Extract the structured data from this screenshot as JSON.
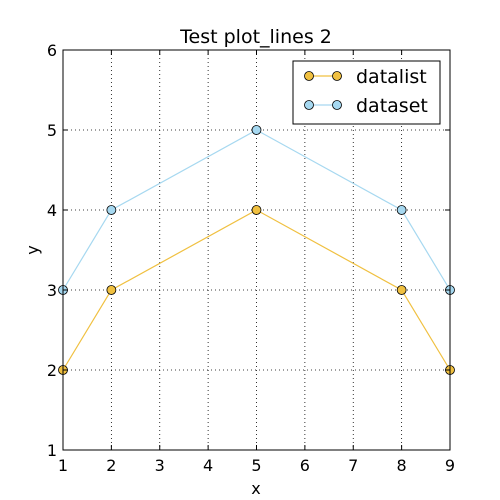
{
  "chart_data": {
    "type": "line",
    "title": "Test plot_lines 2",
    "xlabel": "x",
    "ylabel": "y",
    "xlim": [
      1,
      9
    ],
    "ylim": [
      1,
      6
    ],
    "xticks": [
      "1",
      "2",
      "3",
      "4",
      "5",
      "6",
      "7",
      "8",
      "9"
    ],
    "yticks": [
      "1",
      "2",
      "3",
      "4",
      "5",
      "6"
    ],
    "grid": true,
    "legend_position": "top-right",
    "x": [
      1,
      2,
      5,
      8,
      9
    ],
    "series": [
      {
        "name": "datalist",
        "values": [
          2,
          3,
          4,
          3,
          2
        ],
        "color": "#f0c040",
        "marker": "circle"
      },
      {
        "name": "dataset",
        "values": [
          3,
          4,
          5,
          4,
          3
        ],
        "color": "#a6d8f0",
        "marker": "circle"
      }
    ]
  }
}
